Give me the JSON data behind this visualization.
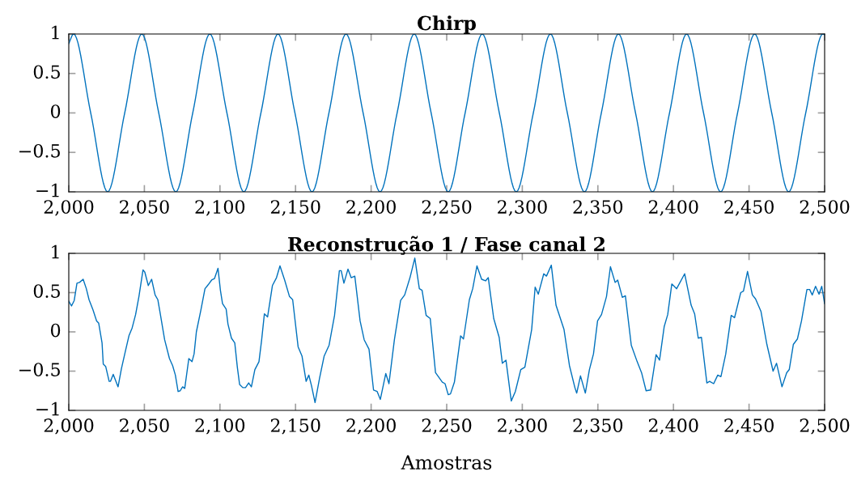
{
  "chart_data": [
    {
      "type": "line",
      "title": "Chirp",
      "color": "#0072bd",
      "x": [
        2000,
        2003.2,
        2014.5,
        2025.7,
        2037,
        2048.3,
        2059.5,
        2070.8,
        2082,
        2093.3,
        2104.6,
        2115.8,
        2127.1,
        2138.4,
        2149.6,
        2160.9,
        2172.1,
        2183.4,
        2194.7,
        2205.9,
        2217.2,
        2228.5,
        2239.7,
        2251,
        2262.2,
        2273.5,
        2284.8,
        2296,
        2307.3,
        2318.6,
        2329.8,
        2341.1,
        2352.3,
        2363.6,
        2374.9,
        2386.1,
        2397.4,
        2408.7,
        2419.9,
        2431.2,
        2442.4,
        2453.7,
        2465,
        2476.2,
        2487.5,
        2498.8,
        2500
      ],
      "values": [
        0.88,
        1,
        0,
        -1,
        0,
        1,
        0,
        -1,
        0,
        1,
        0,
        -1,
        0,
        1,
        0,
        -1,
        0,
        1,
        0,
        -1,
        0,
        1,
        0,
        -1,
        0,
        1,
        0,
        -1,
        0,
        1,
        0,
        -1,
        0,
        1,
        0,
        -1,
        0,
        1,
        0,
        -1,
        0,
        1,
        0,
        -1,
        0,
        1,
        0.99
      ],
      "xlim": [
        2000,
        2500
      ],
      "ylim": [
        -1,
        1
      ],
      "xticks": [
        {
          "value": 2000,
          "label": "2,000"
        },
        {
          "value": 2050,
          "label": "2,050"
        },
        {
          "value": 2100,
          "label": "2,100"
        },
        {
          "value": 2150,
          "label": "2,150"
        },
        {
          "value": 2200,
          "label": "2,200"
        },
        {
          "value": 2250,
          "label": "2,250"
        },
        {
          "value": 2300,
          "label": "2,300"
        },
        {
          "value": 2350,
          "label": "2,350"
        },
        {
          "value": 2400,
          "label": "2,400"
        },
        {
          "value": 2450,
          "label": "2,450"
        },
        {
          "value": 2500,
          "label": "2,500"
        }
      ],
      "yticks": [
        -1,
        -0.5,
        0,
        0.5,
        1
      ],
      "grid": false,
      "legend": false
    },
    {
      "type": "line",
      "title": "Reconstrução 1 / Fase canal 2",
      "xlabel": "Amostras",
      "color": "#0072bd",
      "x": [
        2000,
        2001.8,
        2003.6,
        2005.4,
        2007.1,
        2009.5,
        2011.6,
        2013.4,
        2016,
        2018.4,
        2019.8,
        2022,
        2022.8,
        2024.4,
        2026.7,
        2027.6,
        2029.4,
        2032.6,
        2034.8,
        2037.5,
        2039.8,
        2041.9,
        2044.2,
        2046.4,
        2049.1,
        2050.3,
        2052.6,
        2054.8,
        2057.1,
        2058.9,
        2060.7,
        2063.4,
        2066.6,
        2068.7,
        2070.5,
        2072.3,
        2073.7,
        2075.3,
        2076.7,
        2079.4,
        2081.5,
        2082.9,
        2084.4,
        2087.4,
        2090.1,
        2092.2,
        2094.5,
        2096.4,
        2098.7,
        2100.3,
        2101.7,
        2104.1,
        2105.3,
        2107.6,
        2109.8,
        2111.5,
        2113,
        2115.1,
        2116.9,
        2119,
        2120.8,
        2123.1,
        2125.8,
        2127.6,
        2129.4,
        2131.5,
        2134.7,
        2137.4,
        2139.7,
        2142.8,
        2146,
        2148.1,
        2151.7,
        2154.3,
        2157,
        2158.8,
        2160.6,
        2162.9,
        2165.9,
        2168.9,
        2172.2,
        2175.8,
        2179,
        2180.2,
        2182,
        2184.7,
        2186.8,
        2189.2,
        2192.7,
        2195.4,
        2198.6,
        2201.6,
        2204,
        2206.1,
        2209.7,
        2211.8,
        2215.4,
        2219.5,
        2222.2,
        2225.7,
        2228.9,
        2231.9,
        2233.7,
        2236.4,
        2239.1,
        2242.6,
        2247.1,
        2248.9,
        2251,
        2252.5,
        2255.1,
        2259.2,
        2261.1,
        2265,
        2267.2,
        2270,
        2273.1,
        2275.7,
        2277.5,
        2281.1,
        2284.7,
        2286.8,
        2289.2,
        2292.7,
        2295.4,
        2299,
        2301.7,
        2306.2,
        2308.5,
        2310.6,
        2314.2,
        2316,
        2319.2,
        2322.3,
        2327.6,
        2331.2,
        2334.8,
        2336,
        2338.5,
        2341.7,
        2344.4,
        2347.1,
        2349.8,
        2352.4,
        2355.7,
        2358.3,
        2361.4,
        2363.1,
        2366.2,
        2368.2,
        2372.1,
        2376,
        2378.9,
        2381.9,
        2384.9,
        2388.5,
        2390.8,
        2393.9,
        2396.2,
        2398.9,
        2402.1,
        2407.4,
        2411.7,
        2414,
        2416.4,
        2418.5,
        2422.1,
        2423.9,
        2426.6,
        2429.3,
        2431.4,
        2434.6,
        2438.2,
        2440.4,
        2444.5,
        2446.3,
        2449,
        2452.2,
        2454.3,
        2457.9,
        2461.8,
        2465.9,
        2468.2,
        2471.8,
        2474.9,
        2476.6,
        2479.3,
        2482,
        2484.7,
        2488.3,
        2490.1,
        2491.8,
        2494,
        2496.3,
        2498.1,
        2500
      ],
      "values": [
        0.39,
        0.33,
        0.4,
        0.62,
        0.63,
        0.67,
        0.55,
        0.41,
        0.28,
        0.14,
        0.11,
        -0.14,
        -0.41,
        -0.44,
        -0.63,
        -0.63,
        -0.54,
        -0.7,
        -0.47,
        -0.24,
        -0.05,
        0.05,
        0.22,
        0.45,
        0.79,
        0.76,
        0.59,
        0.67,
        0.47,
        0.41,
        0.21,
        -0.1,
        -0.34,
        -0.43,
        -0.55,
        -0.76,
        -0.75,
        -0.7,
        -0.72,
        -0.34,
        -0.38,
        -0.28,
        0,
        0.28,
        0.55,
        0.6,
        0.66,
        0.68,
        0.81,
        0.53,
        0.36,
        0.29,
        0.1,
        -0.08,
        -0.14,
        -0.45,
        -0.67,
        -0.71,
        -0.71,
        -0.65,
        -0.7,
        -0.48,
        -0.38,
        -0.1,
        0.23,
        0.19,
        0.59,
        0.69,
        0.84,
        0.66,
        0.45,
        0.41,
        -0.19,
        -0.31,
        -0.63,
        -0.55,
        -0.69,
        -0.9,
        -0.59,
        -0.31,
        -0.17,
        0.21,
        0.78,
        0.78,
        0.62,
        0.8,
        0.69,
        0.71,
        0.14,
        -0.1,
        -0.22,
        -0.74,
        -0.76,
        -0.86,
        -0.53,
        -0.66,
        -0.1,
        0.4,
        0.47,
        0.69,
        0.94,
        0.55,
        0.53,
        0.21,
        0.17,
        -0.52,
        -0.64,
        -0.66,
        -0.8,
        -0.79,
        -0.64,
        -0.05,
        -0.09,
        0.41,
        0.55,
        0.84,
        0.67,
        0.65,
        0.69,
        0.17,
        -0.07,
        -0.4,
        -0.36,
        -0.88,
        -0.76,
        -0.48,
        -0.45,
        0.03,
        0.57,
        0.48,
        0.74,
        0.71,
        0.85,
        0.34,
        0.03,
        -0.43,
        -0.71,
        -0.78,
        -0.56,
        -0.78,
        -0.48,
        -0.28,
        0.14,
        0.22,
        0.45,
        0.83,
        0.63,
        0.66,
        0.44,
        0.46,
        -0.17,
        -0.38,
        -0.52,
        -0.75,
        -0.74,
        -0.29,
        -0.36,
        0.07,
        0.22,
        0.61,
        0.55,
        0.74,
        0.34,
        0.23,
        -0.08,
        -0.07,
        -0.65,
        -0.63,
        -0.66,
        -0.55,
        -0.57,
        -0.28,
        0.21,
        0.18,
        0.5,
        0.52,
        0.77,
        0.47,
        0.42,
        0.26,
        -0.16,
        -0.5,
        -0.4,
        -0.7,
        -0.52,
        -0.48,
        -0.16,
        -0.09,
        0.14,
        0.54,
        0.54,
        0.47,
        0.58,
        0.48,
        0.58,
        0.36
      ],
      "xlim": [
        2000,
        2500
      ],
      "ylim": [
        -1,
        1
      ],
      "xticks": [
        {
          "value": 2000,
          "label": "2,000"
        },
        {
          "value": 2050,
          "label": "2,050"
        },
        {
          "value": 2100,
          "label": "2,100"
        },
        {
          "value": 2150,
          "label": "2,150"
        },
        {
          "value": 2200,
          "label": "2,200"
        },
        {
          "value": 2250,
          "label": "2,250"
        },
        {
          "value": 2300,
          "label": "2,300"
        },
        {
          "value": 2350,
          "label": "2,350"
        },
        {
          "value": 2400,
          "label": "2,400"
        },
        {
          "value": 2450,
          "label": "2,450"
        },
        {
          "value": 2500,
          "label": "2,500"
        }
      ],
      "yticks": [
        -1,
        -0.5,
        0,
        0.5,
        1
      ],
      "grid": false,
      "legend": false
    }
  ]
}
